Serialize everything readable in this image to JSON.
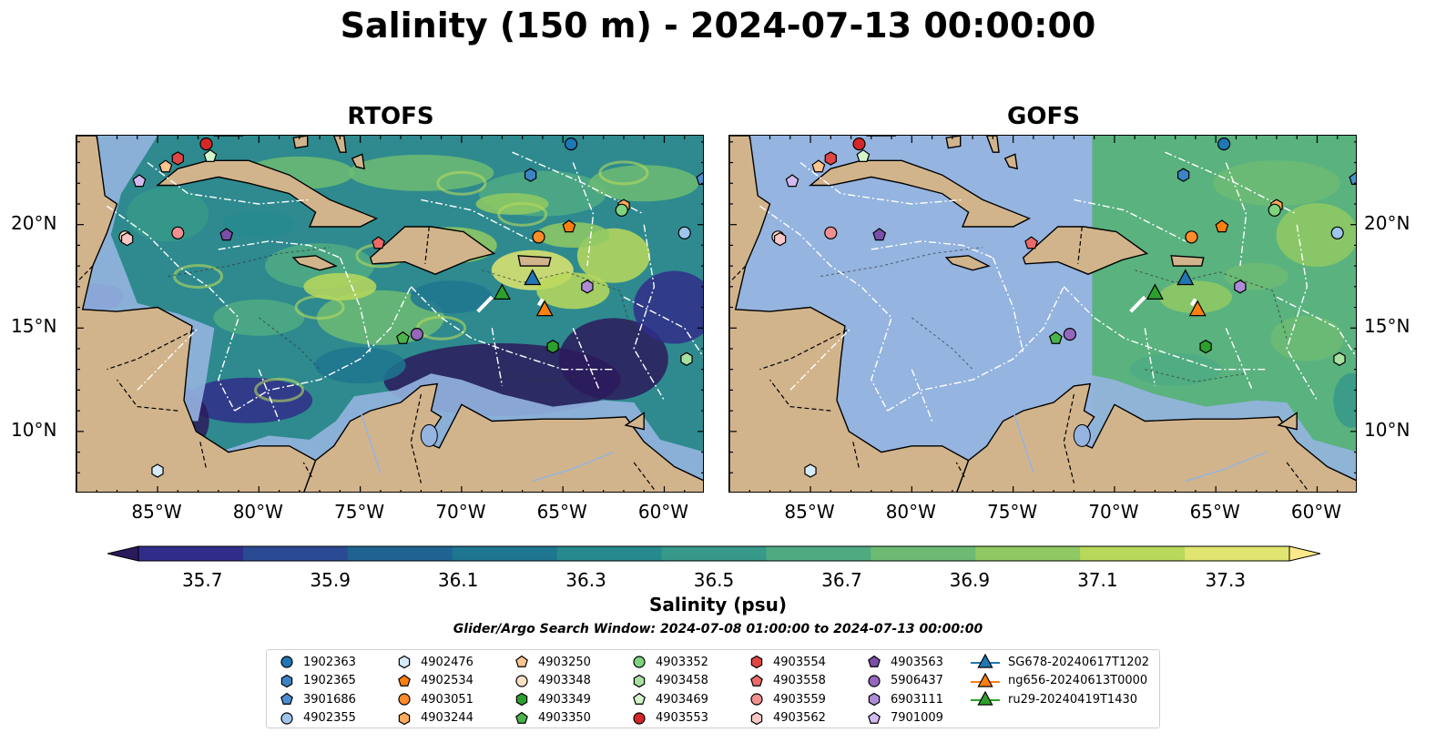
{
  "title": "Salinity (150 m) - 2024-07-13 00:00:00",
  "panels": [
    {
      "title": "RTOFS"
    },
    {
      "title": "GOFS"
    }
  ],
  "x_ticks": [
    "85°W",
    "80°W",
    "75°W",
    "70°W",
    "65°W",
    "60°W"
  ],
  "y_ticks": [
    "20°N",
    "15°N",
    "10°N"
  ],
  "colorbar": {
    "ticks": [
      "35.7",
      "35.9",
      "36.1",
      "36.3",
      "36.5",
      "36.7",
      "36.9",
      "37.1",
      "37.3"
    ],
    "label": "Salinity (psu)",
    "range": [
      35.6,
      37.4
    ],
    "colors": [
      "#2b1a5c",
      "#302d8a",
      "#2a4a93",
      "#1f6392",
      "#1f7690",
      "#26898e",
      "#36998a",
      "#4faa82",
      "#6dbb73",
      "#90c963",
      "#b8d85c",
      "#e0e56f",
      "#fde98a"
    ]
  },
  "search_window": "Glider/Argo Search Window: 2024-07-08 01:00:00 to 2024-07-13 00:00:00",
  "colors": {
    "land": "#d2b48c",
    "ocean_nodata": "#95b4e0",
    "rtofs_base": "#2e8a8e",
    "gofs_east": "#5ab27f",
    "gofs_cut_lon": -71.1
  },
  "map": {
    "lon_range": [
      -89,
      -58
    ],
    "lat_range": [
      7,
      24.3
    ]
  },
  "legend": [
    {
      "label": "1902363",
      "marker": "circle",
      "color": "#1f77b4"
    },
    {
      "label": "1902365",
      "marker": "hexagon",
      "color": "#3c83c4"
    },
    {
      "label": "3901686",
      "marker": "pentagon",
      "color": "#4b8ed0"
    },
    {
      "label": "4902355",
      "marker": "circle",
      "color": "#9ec6ec"
    },
    {
      "label": "4902476",
      "marker": "hexagon",
      "color": "#d6eaf8"
    },
    {
      "label": "4902534",
      "marker": "pentagon",
      "color": "#ff7f0e"
    },
    {
      "label": "4903051",
      "marker": "circle",
      "color": "#ff8c2a"
    },
    {
      "label": "4903244",
      "marker": "hexagon",
      "color": "#ffab5e"
    },
    {
      "label": "4903250",
      "marker": "pentagon",
      "color": "#ffc58f"
    },
    {
      "label": "4903348",
      "marker": "circle",
      "color": "#ffe0c2"
    },
    {
      "label": "4903349",
      "marker": "hexagon",
      "color": "#2ca02c"
    },
    {
      "label": "4903350",
      "marker": "pentagon",
      "color": "#4bb34b"
    },
    {
      "label": "4903352",
      "marker": "circle",
      "color": "#7fd37f"
    },
    {
      "label": "4903458",
      "marker": "hexagon",
      "color": "#a8e0a0"
    },
    {
      "label": "4903469",
      "marker": "pentagon",
      "color": "#d4f4cc"
    },
    {
      "label": "4903553",
      "marker": "circle",
      "color": "#d62728"
    },
    {
      "label": "4903554",
      "marker": "hexagon",
      "color": "#e04545"
    },
    {
      "label": "4903558",
      "marker": "pentagon",
      "color": "#ea6a6a"
    },
    {
      "label": "4903559",
      "marker": "circle",
      "color": "#f28f8f"
    },
    {
      "label": "4903562",
      "marker": "hexagon",
      "color": "#f9c6c6"
    },
    {
      "label": "4903563",
      "marker": "pentagon",
      "color": "#7b4fa8"
    },
    {
      "label": "5906437",
      "marker": "circle",
      "color": "#9467bd"
    },
    {
      "label": "6903111",
      "marker": "hexagon",
      "color": "#ad8bd6"
    },
    {
      "label": "7901009",
      "marker": "pentagon",
      "color": "#d2b9ee"
    },
    {
      "label": "SG678-20240617T1202",
      "marker": "triangle-line",
      "color": "#1f77b4"
    },
    {
      "label": "ng656-20240613T0000",
      "marker": "triangle-line",
      "color": "#ff7f0e"
    },
    {
      "label": "ru29-20240419T1430",
      "marker": "triangle-line",
      "color": "#2ca02c"
    }
  ],
  "floats": [
    {
      "id": "1902363",
      "lon": -64.6,
      "lat": 23.9
    },
    {
      "id": "1902365",
      "lon": -66.6,
      "lat": 22.4
    },
    {
      "id": "3901686",
      "lon": -58.1,
      "lat": 22.2
    },
    {
      "id": "4902355",
      "lon": -59.0,
      "lat": 19.6
    },
    {
      "id": "4902476",
      "lon": -85.0,
      "lat": 8.1
    },
    {
      "id": "4902534",
      "lon": -64.7,
      "lat": 19.9
    },
    {
      "id": "4903051",
      "lon": -66.2,
      "lat": 19.4
    },
    {
      "id": "4903244",
      "lon": -62.0,
      "lat": 20.9
    },
    {
      "id": "4903250",
      "lon": -84.6,
      "lat": 22.8
    },
    {
      "id": "4903348",
      "lon": -86.6,
      "lat": 19.4
    },
    {
      "id": "4903349",
      "lon": -65.5,
      "lat": 14.1
    },
    {
      "id": "4903350",
      "lon": -72.9,
      "lat": 14.5
    },
    {
      "id": "4903352",
      "lon": -62.1,
      "lat": 20.7
    },
    {
      "id": "4903458",
      "lon": -58.9,
      "lat": 13.5
    },
    {
      "id": "4903469",
      "lon": -82.4,
      "lat": 23.3
    },
    {
      "id": "4903553",
      "lon": -82.6,
      "lat": 23.9
    },
    {
      "id": "4903554",
      "lon": -84.0,
      "lat": 23.2
    },
    {
      "id": "4903558",
      "lon": -74.1,
      "lat": 19.1
    },
    {
      "id": "4903559",
      "lon": -84.0,
      "lat": 19.6
    },
    {
      "id": "4903562",
      "lon": -86.5,
      "lat": 19.3
    },
    {
      "id": "4903563",
      "lon": -81.6,
      "lat": 19.5
    },
    {
      "id": "5906437",
      "lon": -72.2,
      "lat": 14.7
    },
    {
      "id": "6903111",
      "lon": -63.8,
      "lat": 17.0
    },
    {
      "id": "7901009",
      "lon": -85.9,
      "lat": 22.1
    }
  ],
  "gliders": [
    {
      "id": "SG678-20240617T1202",
      "lon": -66.5,
      "lat": 17.4
    },
    {
      "id": "ng656-20240613T0000",
      "lon": -65.9,
      "lat": 15.9
    },
    {
      "id": "ru29-20240419T1430",
      "lon": -68.0,
      "lat": 16.7
    }
  ]
}
